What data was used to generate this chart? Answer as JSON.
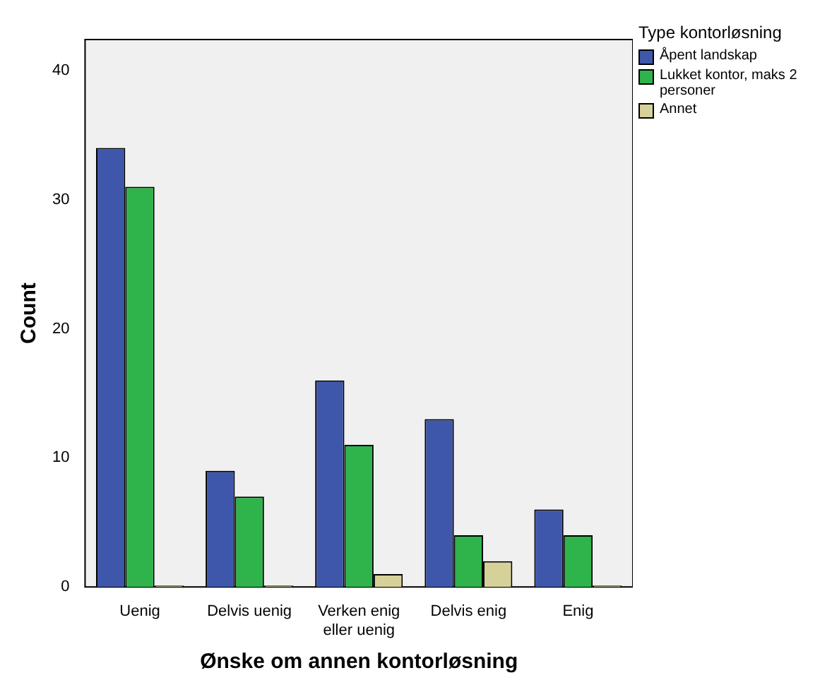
{
  "chart_data": {
    "type": "bar",
    "xlabel": "Ønske om annen kontorløsning",
    "ylabel": "Count",
    "legend_title": "Type kontorløsning",
    "legend": "top right",
    "categories": [
      "Uenig",
      "Delvis uenig",
      "Verken enig eller uenig",
      "Delvis enig",
      "Enig"
    ],
    "series": [
      {
        "name": "Åpent landskap",
        "color": "#3f57ab",
        "values": [
          34,
          9,
          16,
          13,
          6
        ]
      },
      {
        "name": "Lukket kontor, maks 2 personer",
        "color": "#2fb34b",
        "values": [
          31,
          7,
          11,
          4,
          4
        ]
      },
      {
        "name": "Annet",
        "color": "#d6d199",
        "values": [
          0,
          0,
          1,
          2,
          0
        ]
      }
    ],
    "ylim": [
      0,
      42.4
    ],
    "yticks": [
      0,
      10,
      20,
      30,
      40
    ],
    "grid": false
  }
}
